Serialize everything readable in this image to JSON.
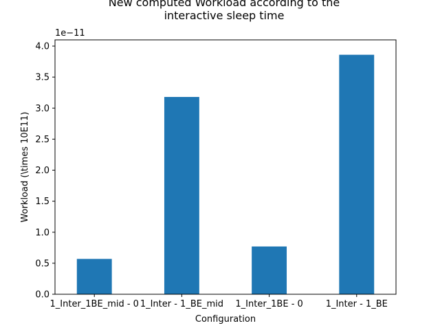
{
  "chart_data": {
    "type": "bar",
    "title_lines": [
      "New computed Workload according to the",
      "interactive sleep time"
    ],
    "xlabel": "Configuration",
    "ylabel": "Workload (\\times 10E11)",
    "offset_text": "1e−11",
    "categories": [
      "1_Inter_1BE_mid - 0",
      "1_Inter - 1_BE_mid",
      "1_Inter_1BE - 0",
      "1_Inter - 1_BE"
    ],
    "series": [
      {
        "values": [
          5.7e-12,
          3.18e-11,
          7.7e-12,
          3.86e-11
        ]
      }
    ],
    "ylim": [
      0,
      4.1e-11
    ],
    "yticks": [
      0,
      5e-12,
      1e-11,
      1.5e-11,
      2e-11,
      2.5e-11,
      3e-11,
      3.5e-11,
      4e-11
    ],
    "ytick_labels": [
      "0.0",
      "0.5",
      "1.0",
      "1.5",
      "2.0",
      "2.5",
      "3.0",
      "3.5",
      "4.0"
    ],
    "bar_color": "#1f77b4",
    "grid": false,
    "legend": "none"
  }
}
